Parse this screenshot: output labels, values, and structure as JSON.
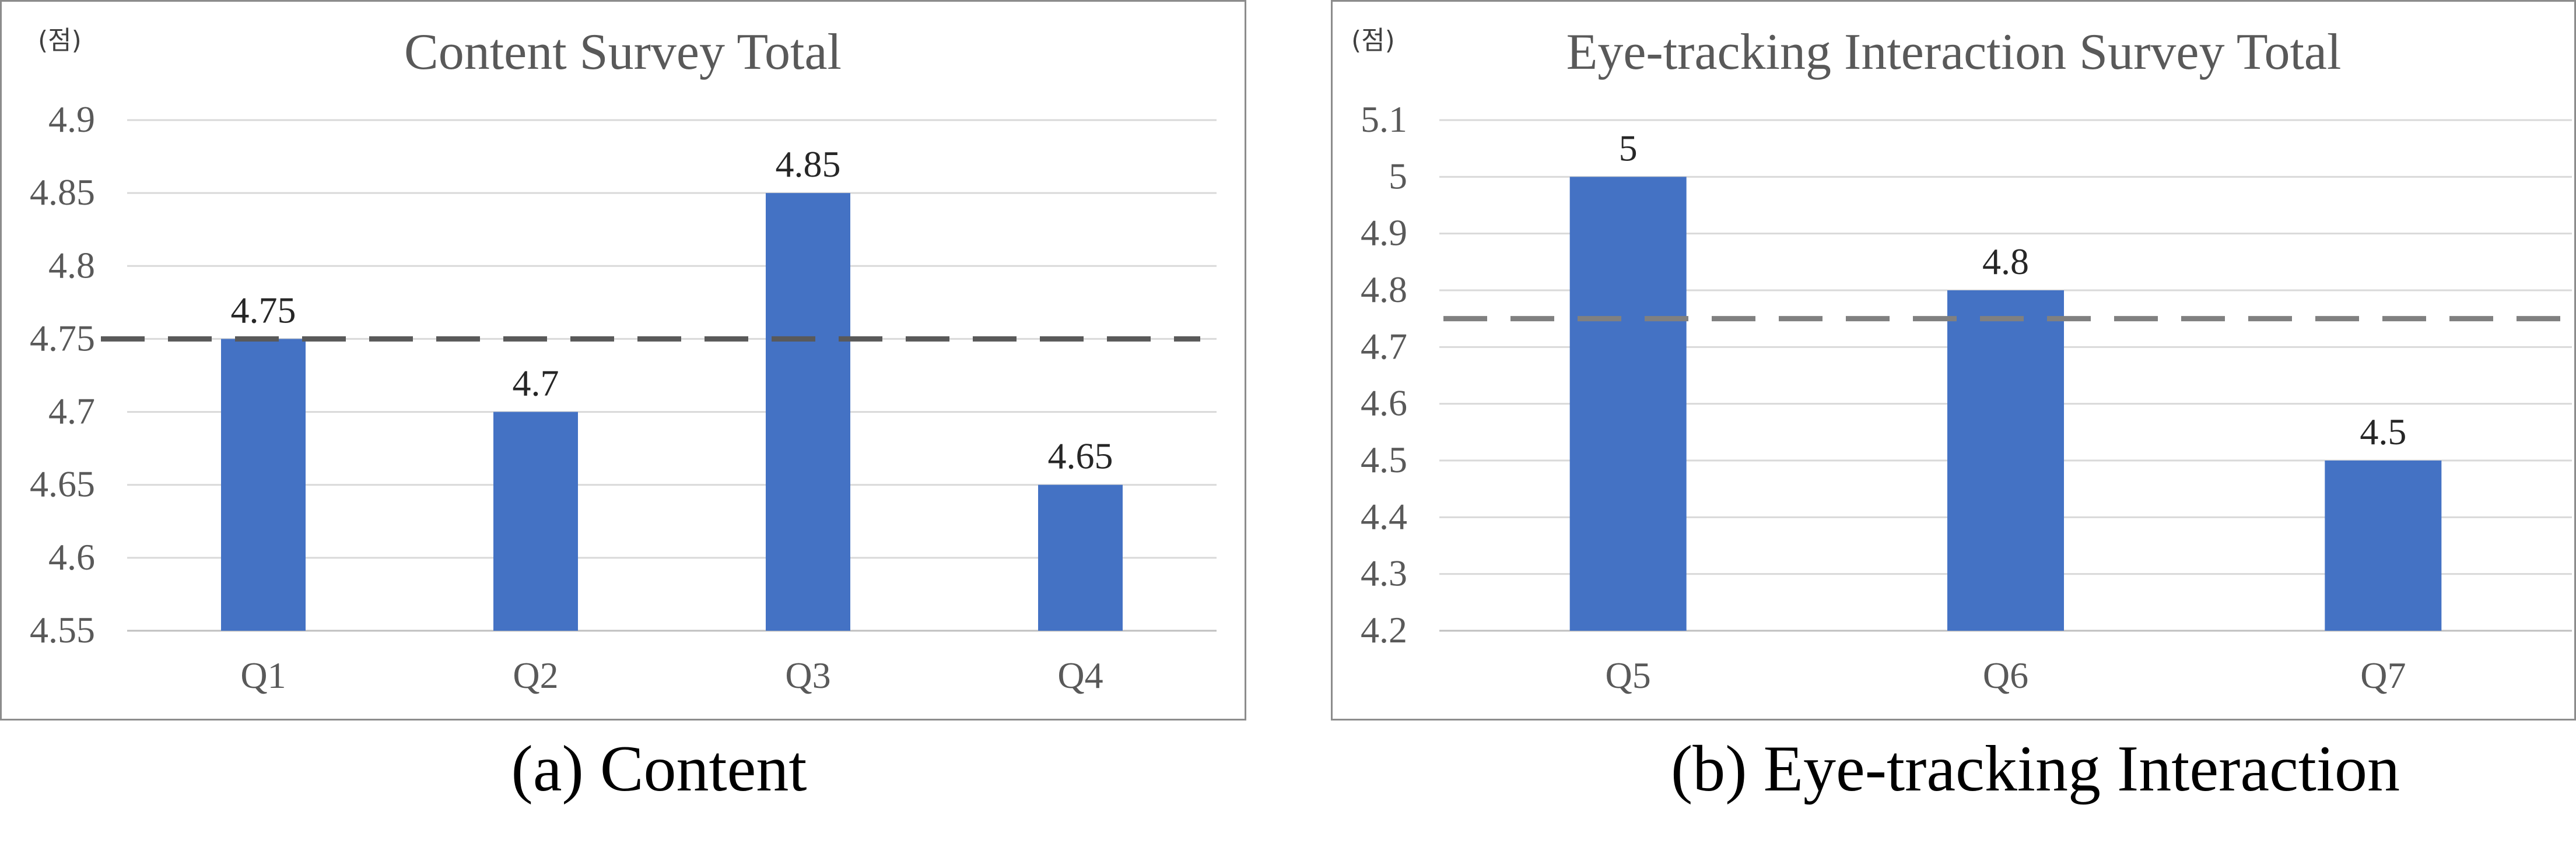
{
  "chart_data": [
    {
      "type": "bar",
      "title": "Content Survey Total",
      "unit_label": "(점)",
      "categories": [
        "Q1",
        "Q2",
        "Q3",
        "Q4"
      ],
      "values": [
        4.75,
        4.7,
        4.85,
        4.65
      ],
      "data_labels": [
        "4.75",
        "4.7",
        "4.85",
        "4.65"
      ],
      "reference_line": 4.75,
      "ylim": [
        4.55,
        4.9
      ],
      "yticks": [
        4.55,
        4.6,
        4.65,
        4.7,
        4.75,
        4.8,
        4.85,
        4.9
      ],
      "ytick_labels": [
        "4.55",
        "4.6",
        "4.65",
        "4.7",
        "4.75",
        "4.8",
        "4.85",
        "4.9"
      ],
      "grid": true,
      "bar_color": "#4472C4",
      "reference_color": "#595959",
      "caption": "(a) Content"
    },
    {
      "type": "bar",
      "title": "Eye-tracking Interaction Survey Total",
      "unit_label": "(점)",
      "categories": [
        "Q5",
        "Q6",
        "Q7"
      ],
      "values": [
        5,
        4.8,
        4.5
      ],
      "data_labels": [
        "5",
        "4.8",
        "4.5"
      ],
      "reference_line": 4.75,
      "ylim": [
        4.2,
        5.1
      ],
      "yticks": [
        4.2,
        4.3,
        4.4,
        4.5,
        4.6,
        4.7,
        4.8,
        4.9,
        5,
        5.1
      ],
      "ytick_labels": [
        "4.2",
        "4.3",
        "4.4",
        "4.5",
        "4.6",
        "4.7",
        "4.8",
        "4.9",
        "5",
        "5.1"
      ],
      "grid": true,
      "bar_color": "#4472C4",
      "reference_color": "#808080",
      "caption": "(b) Eye-tracking Interaction"
    }
  ]
}
